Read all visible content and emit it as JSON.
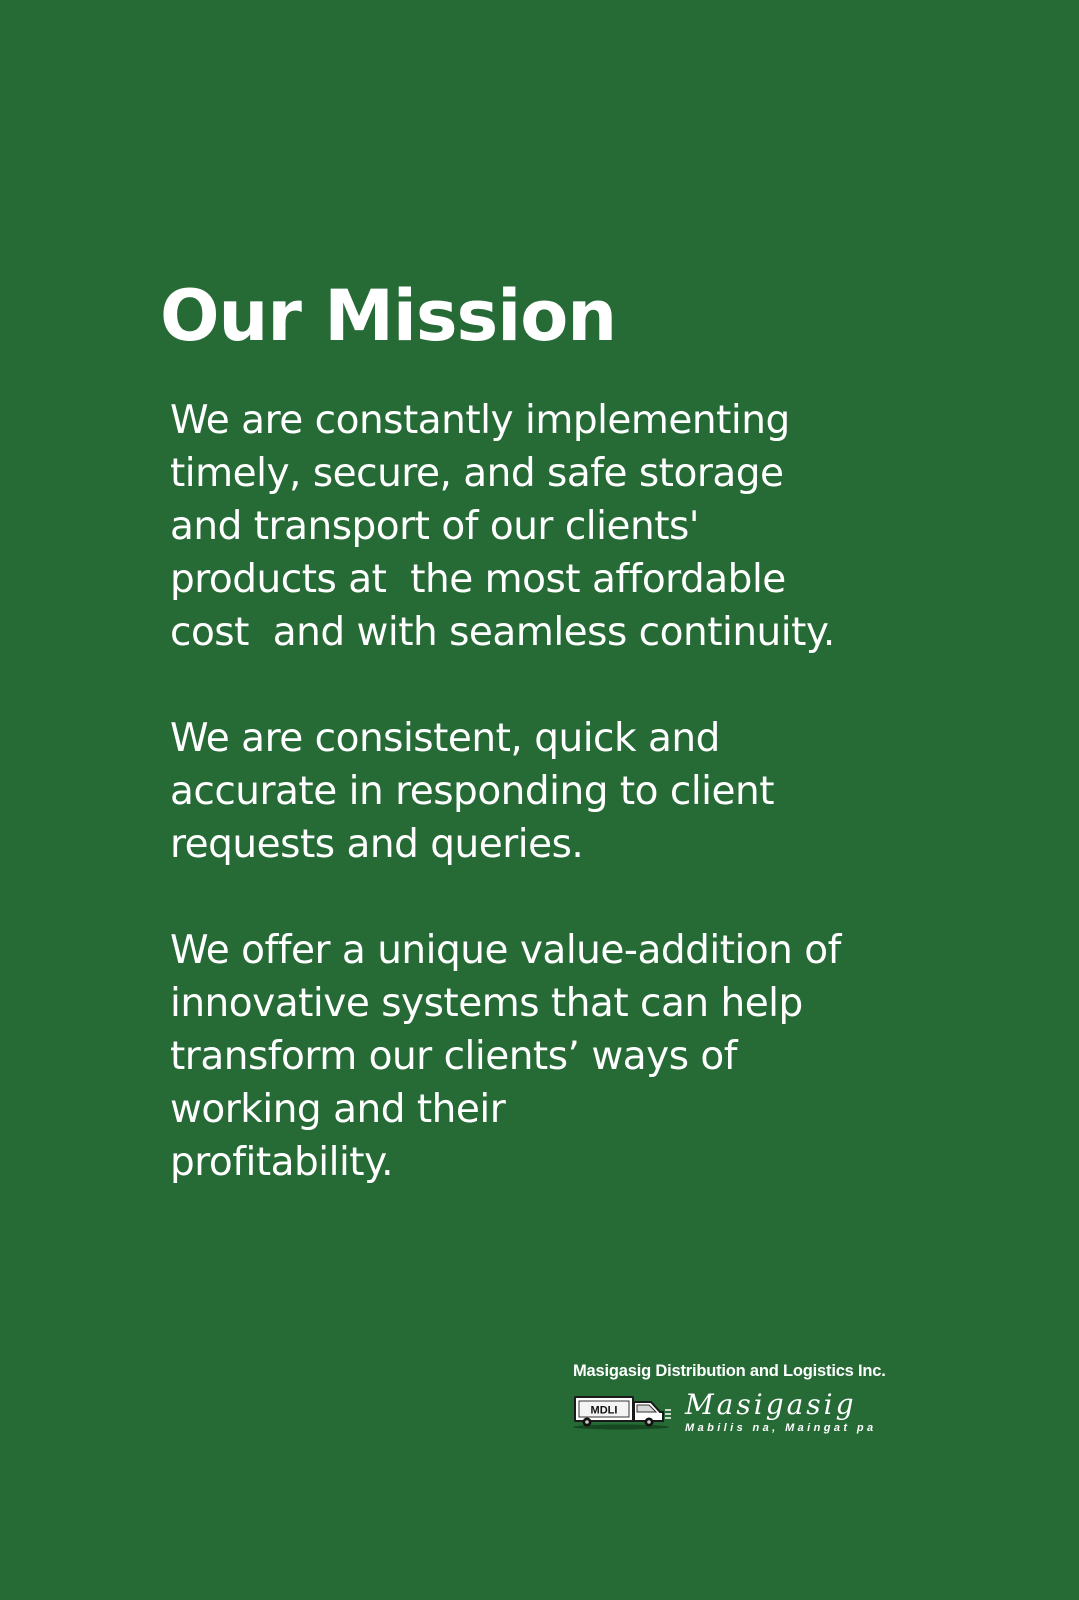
{
  "mission": {
    "title": "Our Mission",
    "paragraphs": [
      {
        "lines": [
          "We are constantly implementing",
          "timely, secure, and safe storage",
          "and transport of our clients'",
          "products at  the most affordable",
          "cost  and with seamless continuity."
        ]
      },
      {
        "lines": [
          "We are consistent, quick and",
          "accurate in responding to client",
          "requests and queries."
        ]
      },
      {
        "lines": [
          "We offer a unique value-addition of",
          "innovative systems that can help",
          "transform our clients’ ways of",
          "working and their",
          "profitability."
        ]
      }
    ]
  },
  "footer": {
    "company_name": "Masigasig Distribution and Logistics Inc.",
    "truck_label": "MDLI",
    "brand_name": "Masigasig",
    "tagline": "Mabilis na, Maingat pa"
  },
  "colors": {
    "background": "#266a36",
    "text": "#ffffff"
  },
  "icons": {
    "logo": "truck-icon"
  }
}
